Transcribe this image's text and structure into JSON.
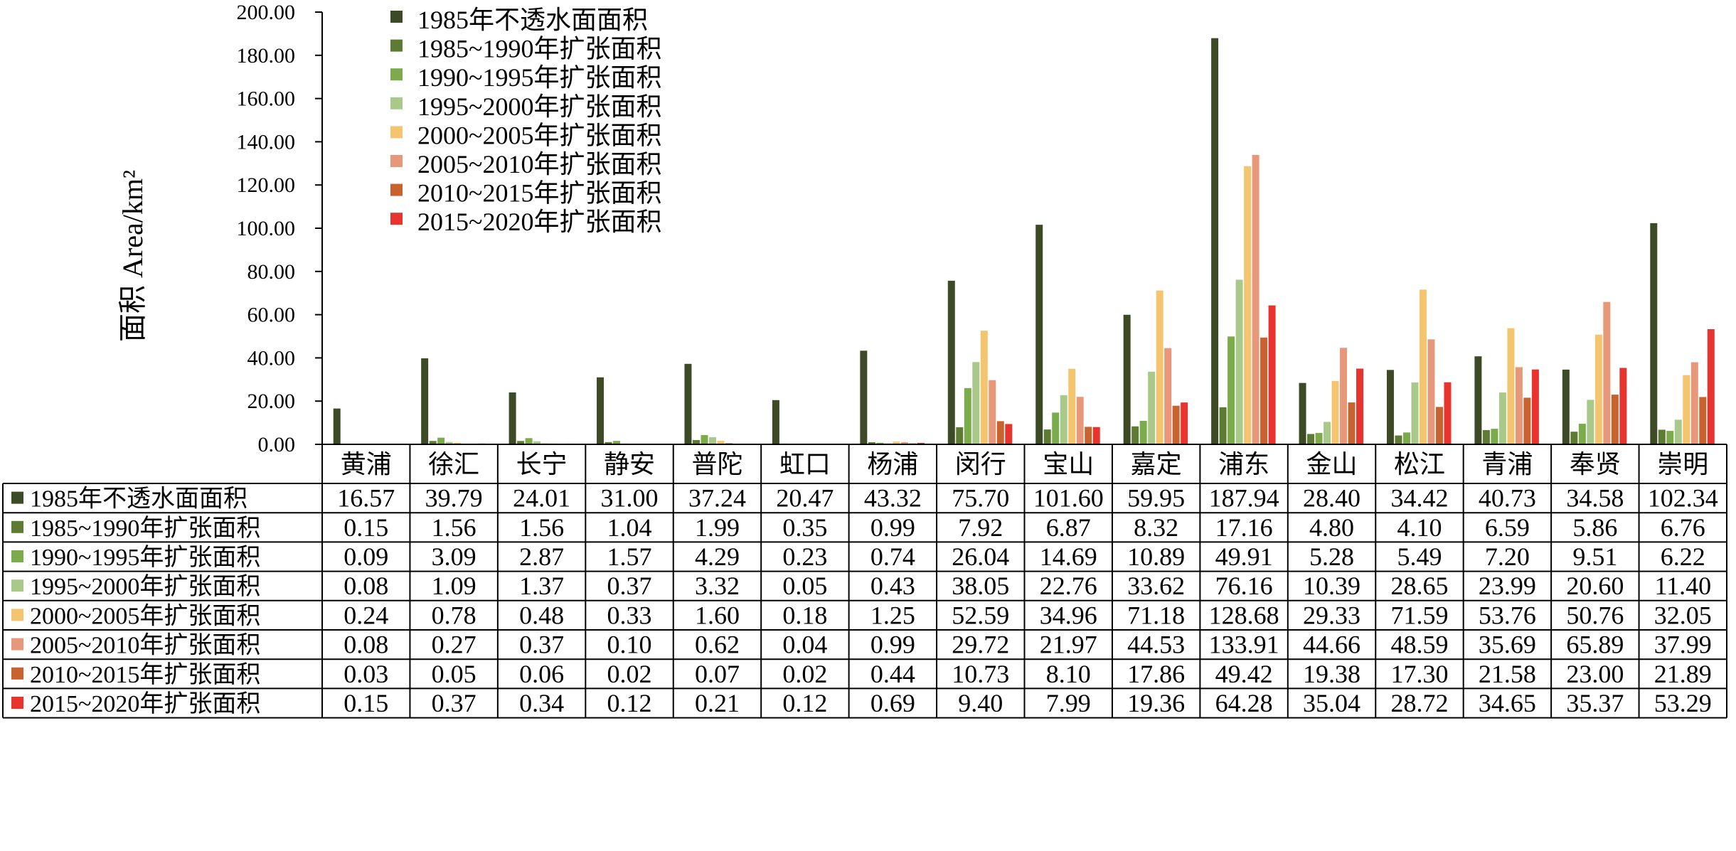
{
  "chart_data": {
    "type": "bar",
    "ylabel": "面积 Area/km²",
    "ylim": [
      0,
      200
    ],
    "yticks": [
      "0.00",
      "20.00",
      "40.00",
      "60.00",
      "80.00",
      "100.00",
      "120.00",
      "140.00",
      "160.00",
      "180.00",
      "200.00"
    ],
    "legend_position": "top-left, inside plot",
    "data_table": true,
    "categories": [
      "黄浦",
      "徐汇",
      "长宁",
      "静安",
      "普陀",
      "虹口",
      "杨浦",
      "闵行",
      "宝山",
      "嘉定",
      "浦东",
      "金山",
      "松江",
      "青浦",
      "奉贤",
      "崇明"
    ],
    "series": [
      {
        "name": "1985年不透水面面积",
        "color": "#3d4a26",
        "values": [
          16.57,
          39.79,
          24.01,
          31.0,
          37.24,
          20.47,
          43.32,
          75.7,
          101.6,
          59.95,
          187.94,
          28.4,
          34.42,
          40.73,
          34.58,
          102.34
        ],
        "labels": [
          "16.57",
          "39.79",
          "24.01",
          "31.00",
          "37.24",
          "20.47",
          "43.32",
          "75.70",
          "101.60",
          "59.95",
          "187.94",
          "28.40",
          "34.42",
          "40.73",
          "34.58",
          "102.34"
        ]
      },
      {
        "name": "1985~1990年扩张面积",
        "color": "#5d7b33",
        "values": [
          0.15,
          1.56,
          1.56,
          1.04,
          1.99,
          0.35,
          0.99,
          7.92,
          6.87,
          8.32,
          17.16,
          4.8,
          4.1,
          6.59,
          5.86,
          6.76
        ],
        "labels": [
          "0.15",
          "1.56",
          "1.56",
          "1.04",
          "1.99",
          "0.35",
          "0.99",
          "7.92",
          "6.87",
          "8.32",
          "17.16",
          "4.80",
          "4.10",
          "6.59",
          "5.86",
          "6.76"
        ]
      },
      {
        "name": "1990~1995年扩张面积",
        "color": "#7bab4a",
        "values": [
          0.09,
          3.09,
          2.87,
          1.57,
          4.29,
          0.23,
          0.74,
          26.04,
          14.69,
          10.89,
          49.91,
          5.28,
          5.49,
          7.2,
          9.51,
          6.22
        ],
        "labels": [
          "0.09",
          "3.09",
          "2.87",
          "1.57",
          "4.29",
          "0.23",
          "0.74",
          "26.04",
          "14.69",
          "10.89",
          "49.91",
          "5.28",
          "5.49",
          "7.20",
          "9.51",
          "6.22"
        ]
      },
      {
        "name": "1995~2000年扩张面积",
        "color": "#a9c98b",
        "values": [
          0.08,
          1.09,
          1.37,
          0.37,
          3.32,
          0.05,
          0.43,
          38.05,
          22.76,
          33.62,
          76.16,
          10.39,
          28.65,
          23.99,
          20.6,
          11.4
        ],
        "labels": [
          "0.08",
          "1.09",
          "1.37",
          "0.37",
          "3.32",
          "0.05",
          "0.43",
          "38.05",
          "22.76",
          "33.62",
          "76.16",
          "10.39",
          "28.65",
          "23.99",
          "20.60",
          "11.40"
        ]
      },
      {
        "name": "2000~2005年扩张面积",
        "color": "#f5c46e",
        "values": [
          0.24,
          0.78,
          0.48,
          0.33,
          1.6,
          0.18,
          1.25,
          52.59,
          34.96,
          71.18,
          128.68,
          29.33,
          71.59,
          53.76,
          50.76,
          32.05
        ],
        "labels": [
          "0.24",
          "0.78",
          "0.48",
          "0.33",
          "1.60",
          "0.18",
          "1.25",
          "52.59",
          "34.96",
          "71.18",
          "128.68",
          "29.33",
          "71.59",
          "53.76",
          "50.76",
          "32.05"
        ]
      },
      {
        "name": "2005~2010年扩张面积",
        "color": "#e8987a",
        "values": [
          0.08,
          0.27,
          0.37,
          0.1,
          0.62,
          0.04,
          0.99,
          29.72,
          21.97,
          44.53,
          133.91,
          44.66,
          48.59,
          35.69,
          65.89,
          37.99
        ],
        "labels": [
          "0.08",
          "0.27",
          "0.37",
          "0.10",
          "0.62",
          "0.04",
          "0.99",
          "29.72",
          "21.97",
          "44.53",
          "133.91",
          "44.66",
          "48.59",
          "35.69",
          "65.89",
          "37.99"
        ]
      },
      {
        "name": "2010~2015年扩张面积",
        "color": "#c8622e",
        "values": [
          0.03,
          0.05,
          0.06,
          0.02,
          0.07,
          0.02,
          0.44,
          10.73,
          8.1,
          17.86,
          49.42,
          19.38,
          17.3,
          21.58,
          23.0,
          21.89
        ],
        "labels": [
          "0.03",
          "0.05",
          "0.06",
          "0.02",
          "0.07",
          "0.02",
          "0.44",
          "10.73",
          "8.10",
          "17.86",
          "49.42",
          "19.38",
          "17.30",
          "21.58",
          "23.00",
          "21.89"
        ]
      },
      {
        "name": "2015~2020年扩张面积",
        "color": "#e8332e",
        "values": [
          0.15,
          0.37,
          0.34,
          0.12,
          0.21,
          0.12,
          0.69,
          9.4,
          7.99,
          19.36,
          64.28,
          35.04,
          28.72,
          34.65,
          35.37,
          53.29
        ],
        "labels": [
          "0.15",
          "0.37",
          "0.34",
          "0.12",
          "0.21",
          "0.12",
          "0.69",
          "9.40",
          "7.99",
          "19.36",
          "64.28",
          "35.04",
          "28.72",
          "34.65",
          "35.37",
          "53.29"
        ]
      }
    ]
  }
}
